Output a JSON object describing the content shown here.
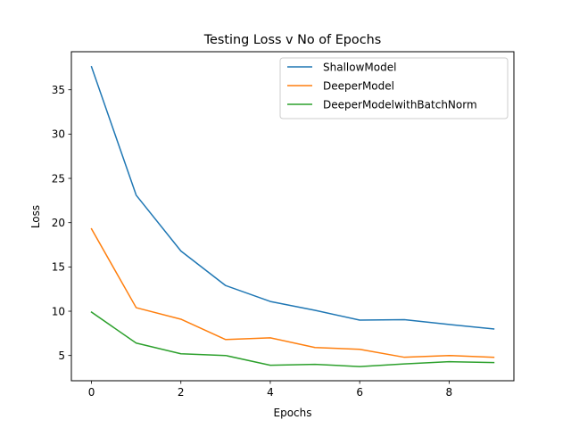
{
  "chart_data": {
    "type": "line",
    "title": "Testing Loss v No of Epochs",
    "xlabel": "Epochs",
    "ylabel": "Loss",
    "x": [
      0,
      1,
      2,
      3,
      4,
      5,
      6,
      7,
      8,
      9
    ],
    "xlim": [
      -0.45,
      9.45
    ],
    "ylim": [
      2.15,
      39.3
    ],
    "xticks": [
      0,
      2,
      4,
      6,
      8
    ],
    "yticks": [
      5,
      10,
      15,
      20,
      25,
      30,
      35
    ],
    "grid": false,
    "legend_position": "top-right",
    "series": [
      {
        "name": "ShallowModel",
        "color": "#1f77b4",
        "values": [
          37.6,
          23.1,
          16.8,
          12.9,
          11.1,
          10.1,
          9.0,
          9.05,
          8.5,
          8.0
        ]
      },
      {
        "name": "DeeperModel",
        "color": "#ff7f0e",
        "values": [
          19.3,
          10.4,
          9.1,
          6.8,
          7.0,
          5.9,
          5.7,
          4.8,
          5.0,
          4.8
        ]
      },
      {
        "name": "DeeperModelwithBatchNorm",
        "color": "#2ca02c",
        "values": [
          9.9,
          6.4,
          5.2,
          5.0,
          3.9,
          4.0,
          3.75,
          4.05,
          4.3,
          4.2
        ]
      }
    ]
  }
}
